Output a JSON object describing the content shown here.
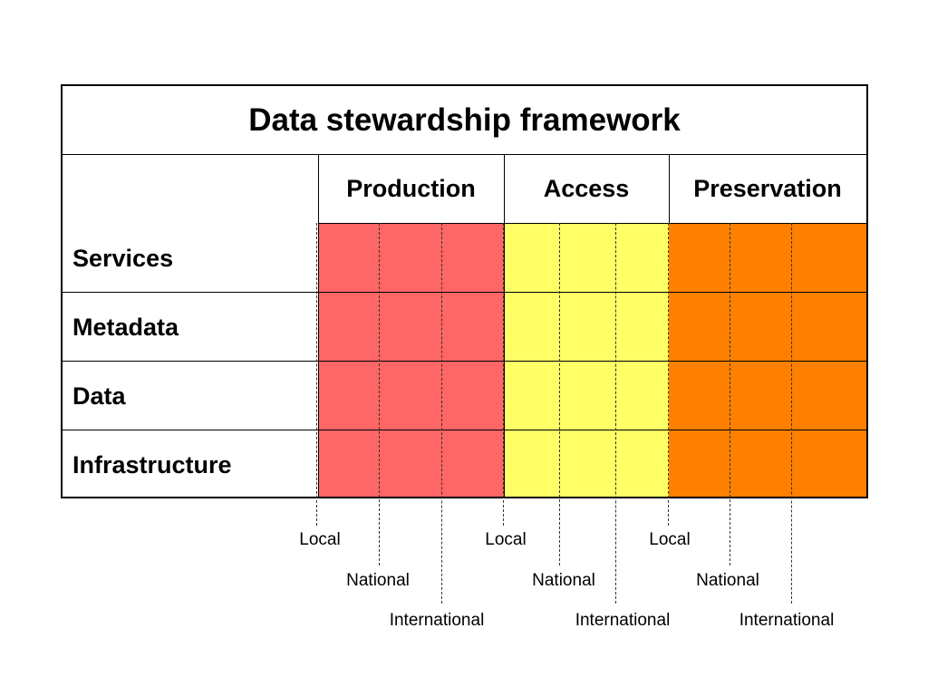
{
  "title": "Data stewardship framework",
  "columns": [
    {
      "label": "Production",
      "color": "#ff6666"
    },
    {
      "label": "Access",
      "color": "#ffff66"
    },
    {
      "label": "Preservation",
      "color": "#ff8000"
    }
  ],
  "rows": [
    "Services",
    "Metadata",
    "Data",
    "Infrastructure"
  ],
  "scales": {
    "production": [
      "Local",
      "National",
      "International"
    ],
    "access": [
      "Local",
      "National",
      "International"
    ],
    "preservation": [
      "Local",
      "National",
      "International"
    ]
  }
}
